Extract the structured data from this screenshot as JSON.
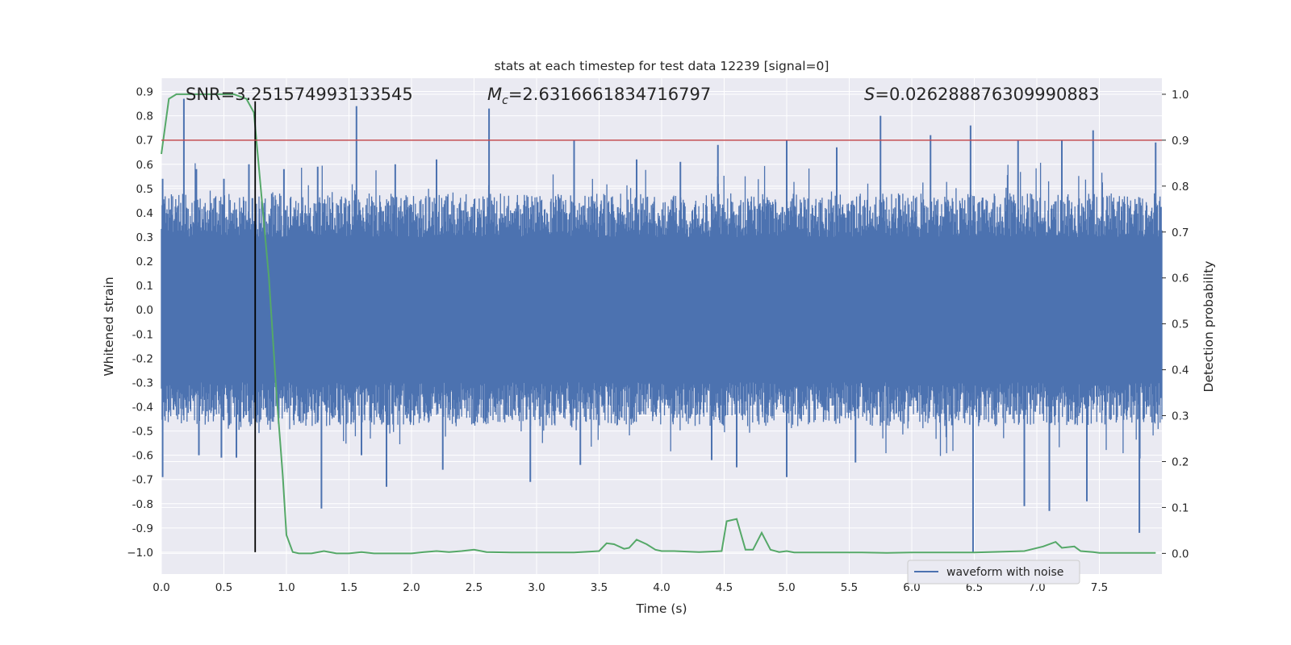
{
  "chart_data": {
    "type": "line",
    "title": "stats at each timestep for test data 12239 [signal=0]",
    "xlabel": "Time (s)",
    "ylabel": "Whitened strain",
    "ylabel_right": "Detection probability",
    "xlim": [
      0.0,
      8.0
    ],
    "ylim": [
      -1.09,
      0.955
    ],
    "ylim_right": [
      -0.045,
      1.035
    ],
    "x_ticks": [
      "0.0",
      "0.5",
      "1.0",
      "1.5",
      "2.0",
      "2.5",
      "3.0",
      "3.5",
      "4.0",
      "4.5",
      "5.0",
      "5.5",
      "6.0",
      "6.5",
      "7.0",
      "7.5"
    ],
    "y_ticks": [
      "0.9",
      "0.8",
      "0.7",
      "0.6",
      "0.5",
      "0.4",
      "0.3",
      "0.2",
      "0.1",
      "0.0",
      "-0.1",
      "-0.2",
      "-0.3",
      "-0.4",
      "-0.5",
      "-0.6",
      "-0.7",
      "-0.8",
      "-0.9",
      "−1.0"
    ],
    "y_ticks_right": [
      "1.0",
      "0.9",
      "0.8",
      "0.7",
      "0.6",
      "0.5",
      "0.4",
      "0.3",
      "0.2",
      "0.1",
      "0.0"
    ],
    "annotations": {
      "snr": "SNR=3.251574993133545",
      "mc_symbol": "M",
      "mc_subscript": "c",
      "mc_value": "=2.6316661834716797",
      "s_symbol": "S",
      "s_value": "=0.026288876309990883"
    },
    "legend": {
      "label": "waveform with noise",
      "placement": "lower-right"
    },
    "threshold": {
      "value": 0.9,
      "axis": "right",
      "color": "#c44e52"
    },
    "marker_line": {
      "x": 0.75,
      "y_range": [
        -1.0,
        0.86
      ],
      "color": "#000000"
    },
    "series": [
      {
        "name": "waveform with noise",
        "axis": "left",
        "color": "#4c72b0",
        "envelope_core": 0.3,
        "spikes_up": [
          [
            0.01,
            0.54
          ],
          [
            0.18,
            0.87
          ],
          [
            0.28,
            0.58
          ],
          [
            0.5,
            0.54
          ],
          [
            0.7,
            0.6
          ],
          [
            0.98,
            0.58
          ],
          [
            1.25,
            0.59
          ],
          [
            1.56,
            0.84
          ],
          [
            1.87,
            0.6
          ],
          [
            2.2,
            0.62
          ],
          [
            2.62,
            0.83
          ],
          [
            3.3,
            0.7
          ],
          [
            3.8,
            0.62
          ],
          [
            4.15,
            0.61
          ],
          [
            4.45,
            0.68
          ],
          [
            5.0,
            0.7
          ],
          [
            5.4,
            0.67
          ],
          [
            5.75,
            0.8
          ],
          [
            6.15,
            0.72
          ],
          [
            6.47,
            0.76
          ],
          [
            6.85,
            0.7
          ],
          [
            7.2,
            0.7
          ],
          [
            7.45,
            0.74
          ],
          [
            7.95,
            0.69
          ]
        ],
        "spikes_down": [
          [
            0.01,
            -0.69
          ],
          [
            0.3,
            -0.6
          ],
          [
            0.48,
            -0.61
          ],
          [
            0.6,
            -0.61
          ],
          [
            1.28,
            -0.82
          ],
          [
            1.6,
            -0.6
          ],
          [
            1.8,
            -0.73
          ],
          [
            2.25,
            -0.66
          ],
          [
            2.95,
            -0.71
          ],
          [
            3.35,
            -0.64
          ],
          [
            4.4,
            -0.62
          ],
          [
            4.6,
            -0.65
          ],
          [
            5.0,
            -0.69
          ],
          [
            5.55,
            -0.63
          ],
          [
            6.49,
            -1.0
          ],
          [
            6.9,
            -0.81
          ],
          [
            7.1,
            -0.83
          ],
          [
            7.4,
            -0.79
          ],
          [
            7.82,
            -0.92
          ]
        ]
      },
      {
        "name": "detection probability",
        "axis": "right",
        "color": "#55a868",
        "x": [
          0.0,
          0.06,
          0.12,
          0.2,
          0.3,
          0.4,
          0.5,
          0.58,
          0.68,
          0.74,
          0.8,
          0.86,
          0.92,
          0.97,
          1.0,
          1.05,
          1.1,
          1.2,
          1.3,
          1.4,
          1.5,
          1.6,
          1.7,
          1.8,
          2.0,
          2.1,
          2.2,
          2.3,
          2.4,
          2.5,
          2.6,
          2.8,
          3.0,
          3.3,
          3.5,
          3.56,
          3.62,
          3.7,
          3.74,
          3.8,
          3.88,
          3.95,
          4.0,
          4.1,
          4.3,
          4.48,
          4.52,
          4.6,
          4.67,
          4.73,
          4.8,
          4.87,
          4.94,
          5.0,
          5.06,
          5.2,
          5.4,
          5.6,
          5.8,
          6.0,
          6.5,
          6.9,
          7.05,
          7.15,
          7.2,
          7.3,
          7.35,
          7.45,
          7.5,
          7.7,
          7.95
        ],
        "y": [
          0.87,
          0.99,
          1.0,
          1.0,
          1.0,
          1.0,
          1.0,
          1.0,
          0.99,
          0.96,
          0.78,
          0.6,
          0.35,
          0.17,
          0.04,
          0.003,
          0.0,
          0.0,
          0.005,
          0.0,
          0.0,
          0.003,
          0.0,
          0.0,
          0.0,
          0.003,
          0.005,
          0.003,
          0.005,
          0.008,
          0.003,
          0.002,
          0.002,
          0.002,
          0.005,
          0.022,
          0.02,
          0.01,
          0.012,
          0.03,
          0.02,
          0.008,
          0.005,
          0.005,
          0.003,
          0.005,
          0.07,
          0.075,
          0.008,
          0.008,
          0.045,
          0.008,
          0.003,
          0.005,
          0.002,
          0.002,
          0.002,
          0.002,
          0.001,
          0.002,
          0.002,
          0.005,
          0.015,
          0.025,
          0.012,
          0.015,
          0.005,
          0.003,
          0.001,
          0.001,
          0.001
        ]
      }
    ]
  }
}
